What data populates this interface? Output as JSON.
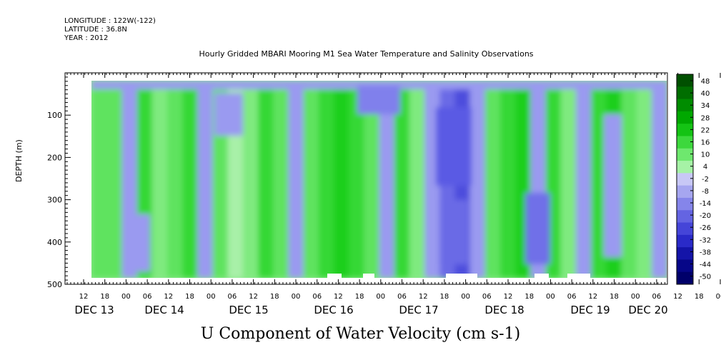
{
  "meta": {
    "longitude": "LONGITUDE : 122W(-122)",
    "latitude": "LATITUDE : 36.8N",
    "year": "YEAR : 2012"
  },
  "chart_data": {
    "type": "heatmap",
    "title": "Hourly Gridded MBARI Mooring M1 Sea Water Temperature and Salinity Observations",
    "bottom_title": "U Component of Water Velocity (cm s-1)",
    "ylabel": "DEPTH (m)",
    "y_axis": {
      "range": [
        0,
        500
      ],
      "inverted": true,
      "ticks": [
        100,
        200,
        300,
        400,
        500
      ]
    },
    "x_axis": {
      "hour_ticks": [
        "12",
        "18",
        "00",
        "06",
        "12",
        "18",
        "00",
        "06",
        "12",
        "18",
        "00",
        "06",
        "12",
        "18",
        "00",
        "06",
        "12",
        "18",
        "00",
        "06",
        "12",
        "18",
        "00",
        "06",
        "12",
        "18",
        "00",
        "06",
        "12",
        "18",
        "00",
        "06"
      ],
      "day_labels": [
        "DEC 13",
        "DEC 14",
        "DEC 15",
        "DEC 16",
        "DEC 17",
        "DEC 18",
        "DEC 19",
        "DEC 20"
      ]
    },
    "colorbar": {
      "levels": [
        "48",
        "40",
        "34",
        "28",
        "22",
        "16",
        "10",
        "4",
        "-2",
        "-8",
        "-14",
        "-20",
        "-26",
        "-32",
        "-38",
        "-44",
        "-50"
      ]
    },
    "columns": [
      {
        "c": "#5fe35f"
      },
      {
        "c": "#5fe35f"
      },
      {
        "c": "#9a9af0"
      },
      {
        "c": "#35d835"
      },
      {
        "c": "#7fea7f"
      },
      {
        "c": "#5fe35f"
      },
      {
        "c": "#35d835"
      },
      {
        "c": "#9a9af0"
      },
      {
        "c": "#5fe35f"
      },
      {
        "c": "#a8f0a8"
      },
      {
        "c": "#7fea7f"
      },
      {
        "c": "#35d835"
      },
      {
        "c": "#5fe35f"
      },
      {
        "c": "#9a9af0"
      },
      {
        "c": "#5fe35f"
      },
      {
        "c": "#35d835"
      },
      {
        "c": "#1fcf1f"
      },
      {
        "c": "#35d835"
      },
      {
        "c": "#5fe35f"
      },
      {
        "c": "#9a9af0"
      },
      {
        "c": "#35d835"
      },
      {
        "c": "#7fea7f"
      },
      {
        "c": "#9a9af0"
      },
      {
        "c": "#6a6ae6"
      },
      {
        "c": "#4d4ddd"
      },
      {
        "c": "#9a9af0"
      },
      {
        "c": "#5fe35f"
      },
      {
        "c": "#35d835"
      },
      {
        "c": "#1fcf1f"
      },
      {
        "c": "#9a9af0"
      },
      {
        "c": "#35d835"
      },
      {
        "c": "#7fea7f"
      },
      {
        "c": "#9a9af0"
      },
      {
        "c": "#35d835"
      },
      {
        "c": "#1fcf1f"
      },
      {
        "c": "#5fe35f"
      },
      {
        "c": "#7fea7f"
      },
      {
        "c": "#9a9af0"
      }
    ]
  }
}
